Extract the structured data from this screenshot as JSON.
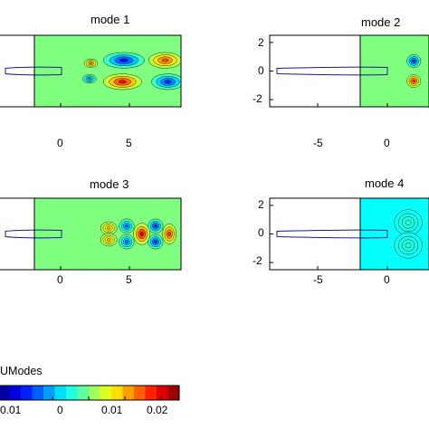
{
  "chart_data": [
    {
      "type": "heatmap",
      "title": "mode 1",
      "x_ticks": [
        "0",
        "5"
      ],
      "y_ticks": [],
      "cells": [
        {
          "x": 4.6,
          "y": 0.75,
          "rx": 1.5,
          "ry": 0.55,
          "value": -0.022
        },
        {
          "x": 7.6,
          "y": 0.75,
          "rx": 1.2,
          "ry": 0.55,
          "value": 0.018
        },
        {
          "x": 2.2,
          "y": 0.55,
          "rx": 0.5,
          "ry": 0.3,
          "value": 0.015
        },
        {
          "x": 4.5,
          "y": -0.75,
          "rx": 1.4,
          "ry": 0.55,
          "value": 0.022
        },
        {
          "x": 7.8,
          "y": -0.75,
          "rx": 1.2,
          "ry": 0.55,
          "value": -0.02
        },
        {
          "x": 2.1,
          "y": -0.55,
          "rx": 0.5,
          "ry": 0.3,
          "value": -0.014
        }
      ]
    },
    {
      "type": "heatmap",
      "title": "mode 2",
      "x_ticks": [
        "-5",
        "0"
      ],
      "y_ticks": [
        "2",
        "0",
        "-2"
      ],
      "cells": [
        {
          "x": 1.9,
          "y": 0.7,
          "rx": 0.5,
          "ry": 0.45,
          "value": -0.02
        },
        {
          "x": 1.9,
          "y": -0.7,
          "rx": 0.5,
          "ry": 0.45,
          "value": 0.02
        }
      ]
    },
    {
      "type": "heatmap",
      "title": "mode 3",
      "x_ticks": [
        "0",
        "5"
      ],
      "y_ticks": [],
      "cells": [
        {
          "x": 3.5,
          "y": 0.4,
          "rx": 0.6,
          "ry": 0.45,
          "value": 0.012
        },
        {
          "x": 3.5,
          "y": -0.4,
          "rx": 0.6,
          "ry": 0.45,
          "value": 0.012
        },
        {
          "x": 4.8,
          "y": 0.55,
          "rx": 0.55,
          "ry": 0.5,
          "value": -0.016
        },
        {
          "x": 4.8,
          "y": -0.55,
          "rx": 0.55,
          "ry": 0.5,
          "value": -0.016
        },
        {
          "x": 5.9,
          "y": 0.0,
          "rx": 0.6,
          "ry": 0.75,
          "value": 0.024
        },
        {
          "x": 6.9,
          "y": 0.55,
          "rx": 0.55,
          "ry": 0.5,
          "value": -0.02
        },
        {
          "x": 6.9,
          "y": -0.55,
          "rx": 0.55,
          "ry": 0.5,
          "value": -0.02
        },
        {
          "x": 7.9,
          "y": 0.0,
          "rx": 0.5,
          "ry": 0.7,
          "value": 0.02
        }
      ]
    },
    {
      "type": "heatmap",
      "title": "mode 4",
      "x_ticks": [
        "-5",
        "0"
      ],
      "y_ticks": [
        "2",
        "0",
        "-2"
      ],
      "cells": [
        {
          "x": 1.5,
          "y": 0.8,
          "rx": 1.0,
          "ry": 0.9,
          "value": -0.004
        },
        {
          "x": 1.5,
          "y": -0.8,
          "rx": 1.0,
          "ry": 0.9,
          "value": -0.004
        }
      ]
    },
    {
      "type": "heatmap",
      "colorbar": true,
      "title": "UModes",
      "ticks": [
        "0.01",
        "0",
        "0.01",
        "0.02"
      ],
      "range": [
        -0.025,
        0.025
      ]
    }
  ]
}
